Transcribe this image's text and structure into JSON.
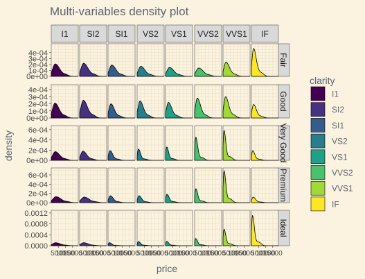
{
  "chart_data": {
    "type": "area",
    "title": "Multi-variables density plot",
    "xlabel": "price",
    "ylabel": "density",
    "legend_title": "clarity",
    "legend_position": "right",
    "grid": true,
    "col_facets": [
      "I1",
      "SI2",
      "SI1",
      "VS2",
      "VS1",
      "VVS2",
      "VVS1",
      "IF"
    ],
    "row_facets": [
      {
        "label": "Fair",
        "ylim": [
          0,
          0.00055
        ],
        "yticks": [
          0,
          0.0001,
          0.0002,
          0.0003,
          0.0004
        ],
        "ytick_labels": [
          "0e+00",
          "1e-04",
          "2e-04",
          "3e-04",
          "4e-04"
        ]
      },
      {
        "label": "Good",
        "ylim": [
          0,
          0.00047
        ],
        "yticks": [
          0,
          0.0001,
          0.0002,
          0.0003,
          0.0004
        ],
        "ytick_labels": [
          "0e+00",
          "1e-04",
          "2e-04",
          "3e-04",
          "4e-04"
        ]
      },
      {
        "label": "Very Good",
        "ylim": [
          0,
          0.00068
        ],
        "yticks": [
          0,
          0.0002,
          0.0004,
          0.0006
        ],
        "ytick_labels": [
          "0e+00",
          "2e-04",
          "4e-04",
          "6e-04"
        ]
      },
      {
        "label": "Premium",
        "ylim": [
          0,
          0.00075
        ],
        "yticks": [
          0,
          0.0002,
          0.0004,
          0.0006
        ],
        "ytick_labels": [
          "0e+00",
          "2e-04",
          "4e-04",
          "6e-04"
        ]
      },
      {
        "label": "Ideal",
        "ylim": [
          0,
          0.0013
        ],
        "yticks": [
          0,
          0.0004,
          0.0008,
          0.0012
        ],
        "ytick_labels": [
          "0.0000",
          "0.0004",
          "0.0008",
          "0.0012"
        ]
      }
    ],
    "xlim": [
      0,
      19000
    ],
    "xtick_values": [
      5000,
      10000,
      15000
    ],
    "xtick_labels": [
      "5000",
      "10000",
      "15000"
    ],
    "colors": [
      "#440154",
      "#46327e",
      "#365c8d",
      "#277f8e",
      "#1fa187",
      "#4ac16d",
      "#a0da39",
      "#fde725"
    ],
    "series_peaks": [
      [
        {
          "peak": 0.00021,
          "mode": 2800
        },
        {
          "peak": 0.00022,
          "mode": 2800
        },
        {
          "peak": 0.00019,
          "mode": 2600
        },
        {
          "peak": 0.00017,
          "mode": 2600
        },
        {
          "peak": 0.00015,
          "mode": 2800
        },
        {
          "peak": 0.00014,
          "mode": 2900
        },
        {
          "peak": 0.00024,
          "mode": 2100
        },
        {
          "peak": 0.00047,
          "mode": 1500
        }
      ],
      [
        {
          "peak": 0.00021,
          "mode": 2600
        },
        {
          "peak": 0.00025,
          "mode": 2600
        },
        {
          "peak": 0.0002,
          "mode": 2000
        },
        {
          "peak": 0.00024,
          "mode": 2000
        },
        {
          "peak": 0.00022,
          "mode": 2000
        },
        {
          "peak": 0.00028,
          "mode": 1900
        },
        {
          "peak": 0.0003,
          "mode": 1800
        },
        {
          "peak": 0.00019,
          "mode": 1500
        }
      ],
      [
        {
          "peak": 0.00017,
          "mode": 2800
        },
        {
          "peak": 0.00018,
          "mode": 2300
        },
        {
          "peak": 0.00019,
          "mode": 1400
        },
        {
          "peak": 0.00022,
          "mode": 900
        },
        {
          "peak": 0.00026,
          "mode": 800
        },
        {
          "peak": 0.00045,
          "mode": 800
        },
        {
          "peak": 0.00058,
          "mode": 700
        },
        {
          "peak": 0.00019,
          "mode": 900
        }
      ],
      [
        {
          "peak": 0.00013,
          "mode": 3300
        },
        {
          "peak": 0.00012,
          "mode": 3200
        },
        {
          "peak": 0.00015,
          "mode": 1600
        },
        {
          "peak": 0.00015,
          "mode": 1300
        },
        {
          "peak": 0.00018,
          "mode": 1000
        },
        {
          "peak": 0.0003,
          "mode": 800
        },
        {
          "peak": 0.00068,
          "mode": 700
        },
        {
          "peak": 0.00012,
          "mode": 1200
        }
      ],
      [
        {
          "peak": 0.00011,
          "mode": 3000
        },
        {
          "peak": 0.00011,
          "mode": 2800
        },
        {
          "peak": 0.00011,
          "mode": 1000
        },
        {
          "peak": 0.00015,
          "mode": 900
        },
        {
          "peak": 0.00016,
          "mode": 800
        },
        {
          "peak": 0.00026,
          "mode": 750
        },
        {
          "peak": 0.0006,
          "mode": 700
        },
        {
          "peak": 0.0011,
          "mode": 750
        }
      ]
    ]
  }
}
